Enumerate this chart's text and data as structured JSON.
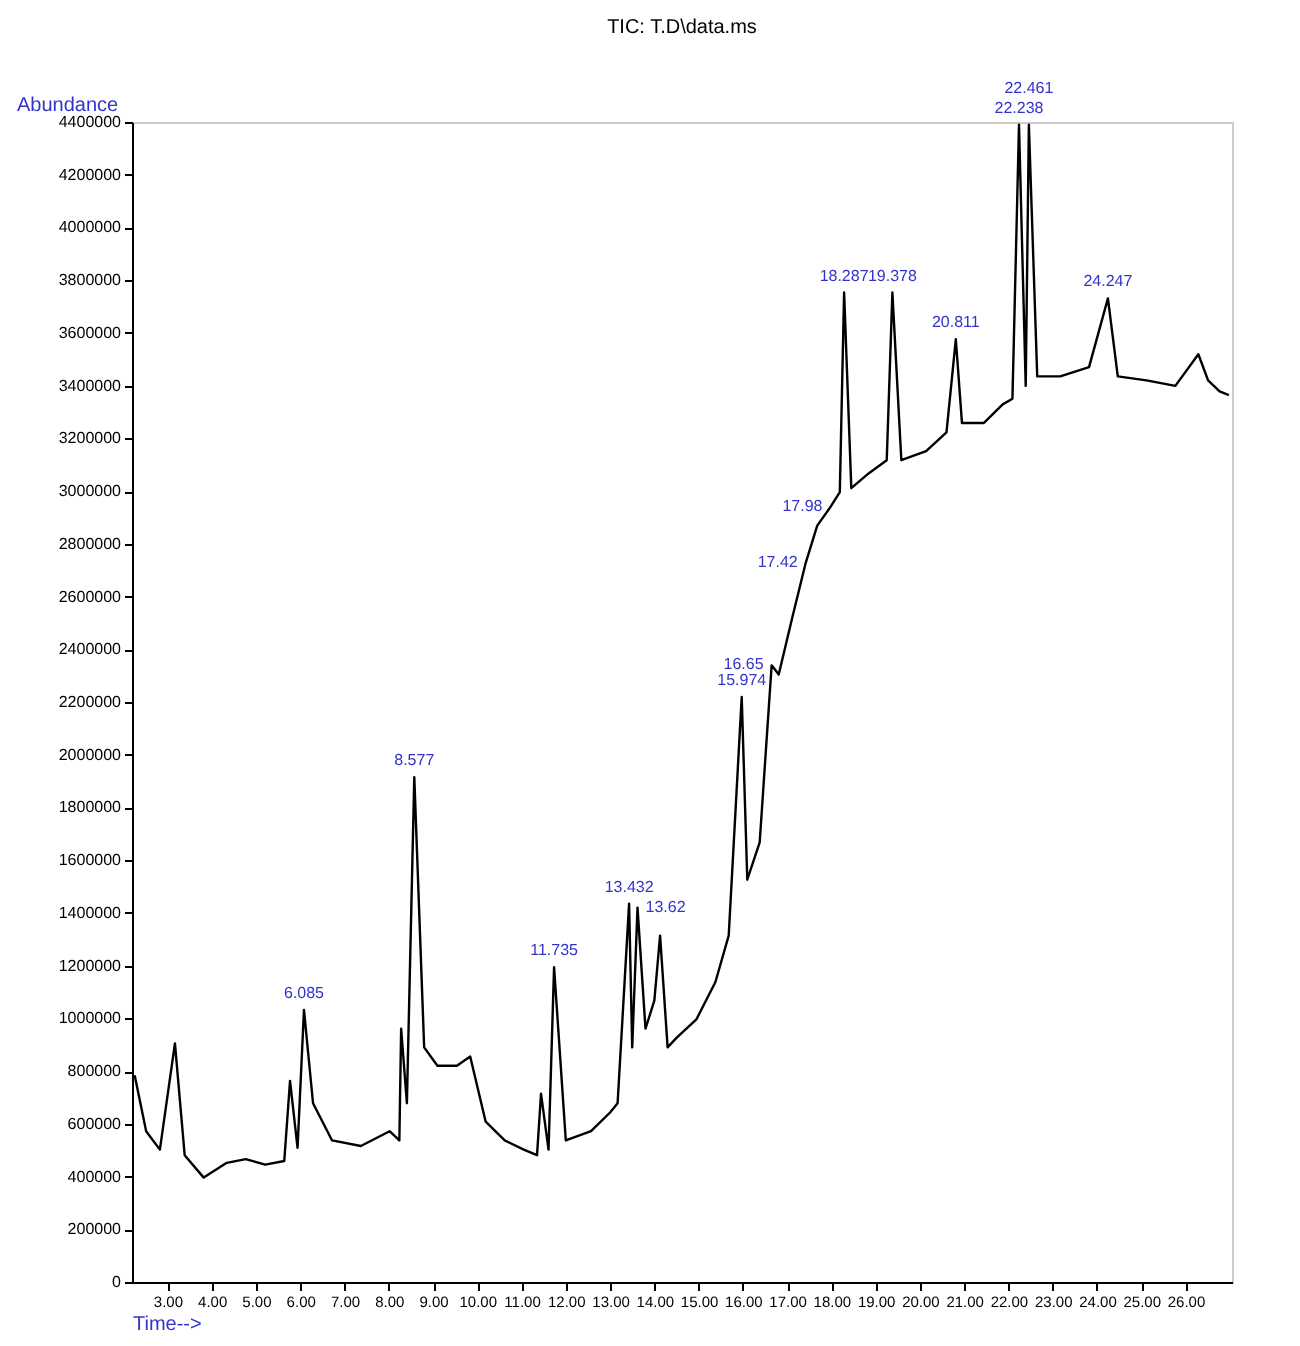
{
  "chart_data": {
    "type": "line",
    "title": "TIC: T.D\\data.ms",
    "xlabel": "Time-->",
    "ylabel": "Abundance",
    "x": [
      2.26,
      2.52,
      2.83,
      3.17,
      3.39,
      3.82,
      4.34,
      4.77,
      5.21,
      5.64,
      5.77,
      5.94,
      6.085,
      6.29,
      6.72,
      7.37,
      8.02,
      8.24,
      8.28,
      8.41,
      8.577,
      8.8,
      9.1,
      9.54,
      9.84,
      10.19,
      10.62,
      11.05,
      11.35,
      11.44,
      11.61,
      11.735,
      12.0,
      12.57,
      13.0,
      13.17,
      13.43,
      13.5,
      13.62,
      13.8,
      14.0,
      14.13,
      14.3,
      14.5,
      14.95,
      15.38,
      15.68,
      15.974,
      16.1,
      16.38,
      16.65,
      16.81,
      17.11,
      17.42,
      17.68,
      17.98,
      18.19,
      18.287,
      18.45,
      18.84,
      19.25,
      19.378,
      19.58,
      20.14,
      20.6,
      20.811,
      20.95,
      21.44,
      21.87,
      22.09,
      22.238,
      22.39,
      22.461,
      22.65,
      23.17,
      23.82,
      24.247,
      24.47,
      25.12,
      25.77,
      26.29,
      26.51,
      26.77,
      26.98
    ],
    "series": [
      {
        "color": "#000000",
        "values": [
          784000,
          572000,
          502000,
          905000,
          481000,
          396000,
          452000,
          466000,
          445000,
          459000,
          763000,
          509000,
          1032000,
          678000,
          537000,
          516000,
          572000,
          537000,
          961000,
          678000,
          1915000,
          890000,
          820000,
          820000,
          855000,
          608000,
          537000,
          502000,
          481000,
          714000,
          502000,
          1194000,
          537000,
          572000,
          643000,
          678000,
          1435000,
          890000,
          1420000,
          961000,
          1067000,
          1314000,
          890000,
          926000,
          996000,
          1138000,
          1314000,
          2219000,
          1526000,
          1668000,
          2339000,
          2304000,
          2516000,
          2728000,
          2869000,
          2940000,
          2996000,
          3753000,
          3011000,
          3067000,
          3117000,
          3753000,
          3117000,
          3152000,
          3223000,
          3576000,
          3258000,
          3258000,
          3329000,
          3350000,
          4390000,
          3399000,
          4390000,
          3435000,
          3435000,
          3470000,
          3731000,
          3435000,
          3420000,
          3399000,
          3519000,
          3420000,
          3378000,
          3364000
        ]
      }
    ],
    "xlim": [
      2.2,
      27.05
    ],
    "xticks": [
      {
        "value": 3,
        "label": "3.00"
      },
      {
        "value": 4,
        "label": "4.00"
      },
      {
        "value": 5,
        "label": "5.00"
      },
      {
        "value": 6,
        "label": "6.00"
      },
      {
        "value": 7,
        "label": "7.00"
      },
      {
        "value": 8,
        "label": "8.00"
      },
      {
        "value": 9,
        "label": "9.00"
      },
      {
        "value": 10,
        "label": "10.00"
      },
      {
        "value": 11,
        "label": "11.00"
      },
      {
        "value": 12,
        "label": "12.00"
      },
      {
        "value": 13,
        "label": "13.00"
      },
      {
        "value": 14,
        "label": "14.00"
      },
      {
        "value": 15,
        "label": "15.00"
      },
      {
        "value": 16,
        "label": "16.00"
      },
      {
        "value": 17,
        "label": "17.00"
      },
      {
        "value": 18,
        "label": "18.00"
      },
      {
        "value": 19,
        "label": "19.00"
      },
      {
        "value": 20,
        "label": "20.00"
      },
      {
        "value": 21,
        "label": "21.00"
      },
      {
        "value": 22,
        "label": "22.00"
      },
      {
        "value": 23,
        "label": "23.00"
      },
      {
        "value": 24,
        "label": "24.00"
      },
      {
        "value": 25,
        "label": "25.00"
      },
      {
        "value": 26,
        "label": "26.00"
      }
    ],
    "ylim": [
      0,
      4400000
    ],
    "yticks": [
      0,
      200000,
      400000,
      600000,
      800000,
      1000000,
      1200000,
      1400000,
      1600000,
      1800000,
      2000000,
      2200000,
      2400000,
      2600000,
      2800000,
      3000000,
      3200000,
      3400000,
      3600000,
      3800000,
      4000000,
      4200000,
      4400000
    ],
    "annotations": [
      {
        "text": "6.085",
        "x": 6.085,
        "y": 1032000
      },
      {
        "text": "8.577",
        "x": 8.577,
        "y": 1915000
      },
      {
        "text": "11.735",
        "x": 11.735,
        "y": 1194000
      },
      {
        "text": "13.432",
        "x": 13.43,
        "y": 1435000
      },
      {
        "text": "13.62",
        "x": 13.62,
        "y": 1420000
      },
      {
        "text": "15.974",
        "x": 15.974,
        "y": 2219000
      },
      {
        "text": "16.65",
        "x": 16.65,
        "y": 2339000
      },
      {
        "text": "17.42",
        "x": 17.42,
        "y": 2728000
      },
      {
        "text": "17.98",
        "x": 17.98,
        "y": 2940000
      },
      {
        "text": "18.287",
        "x": 18.287,
        "y": 3753000
      },
      {
        "text": "19.378",
        "x": 19.378,
        "y": 3753000
      },
      {
        "text": "20.811",
        "x": 20.811,
        "y": 3576000
      },
      {
        "text": "22.238",
        "x": 22.238,
        "y": 4390000
      },
      {
        "text": "22.461",
        "x": 22.461,
        "y": 4390000
      },
      {
        "text": "24.247",
        "x": 24.247,
        "y": 3731000
      }
    ]
  }
}
